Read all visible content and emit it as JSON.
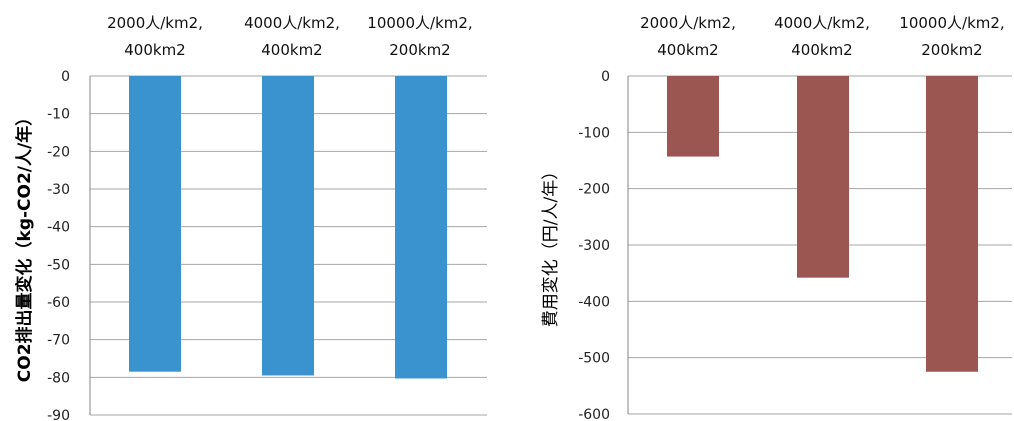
{
  "chart_data": [
    {
      "type": "bar",
      "categories": [
        [
          "2000人/km2,",
          "400km2"
        ],
        [
          "4000人/km2,",
          "400km2"
        ],
        [
          "10000人/km2,",
          "200km2"
        ]
      ],
      "values": [
        -78.5,
        -79.5,
        -80.3
      ],
      "ylim": [
        -90,
        0
      ],
      "yticks": [
        0,
        -10,
        -20,
        -30,
        -40,
        -50,
        -60,
        -70,
        -80,
        -90
      ],
      "ylabel": "CO2排出量変化（kg-CO2/人/年）",
      "xlabel": "",
      "title": "",
      "color": "#3a92cf",
      "grid": true,
      "category_labels_position": "top",
      "legend": "none"
    },
    {
      "type": "bar",
      "categories": [
        [
          "2000人/km2,",
          "400km2"
        ],
        [
          "4000人/km2,",
          "400km2"
        ],
        [
          "10000人/km2,",
          "200km2"
        ]
      ],
      "values": [
        -143,
        -358,
        -525
      ],
      "ylim": [
        -600,
        0
      ],
      "yticks": [
        0,
        -100,
        -200,
        -300,
        -400,
        -500,
        -600
      ],
      "ylabel": "費用変化（円/人/年）",
      "xlabel": "",
      "title": "",
      "color": "#9b5652",
      "grid": true,
      "category_labels_position": "top",
      "legend": "none"
    }
  ]
}
